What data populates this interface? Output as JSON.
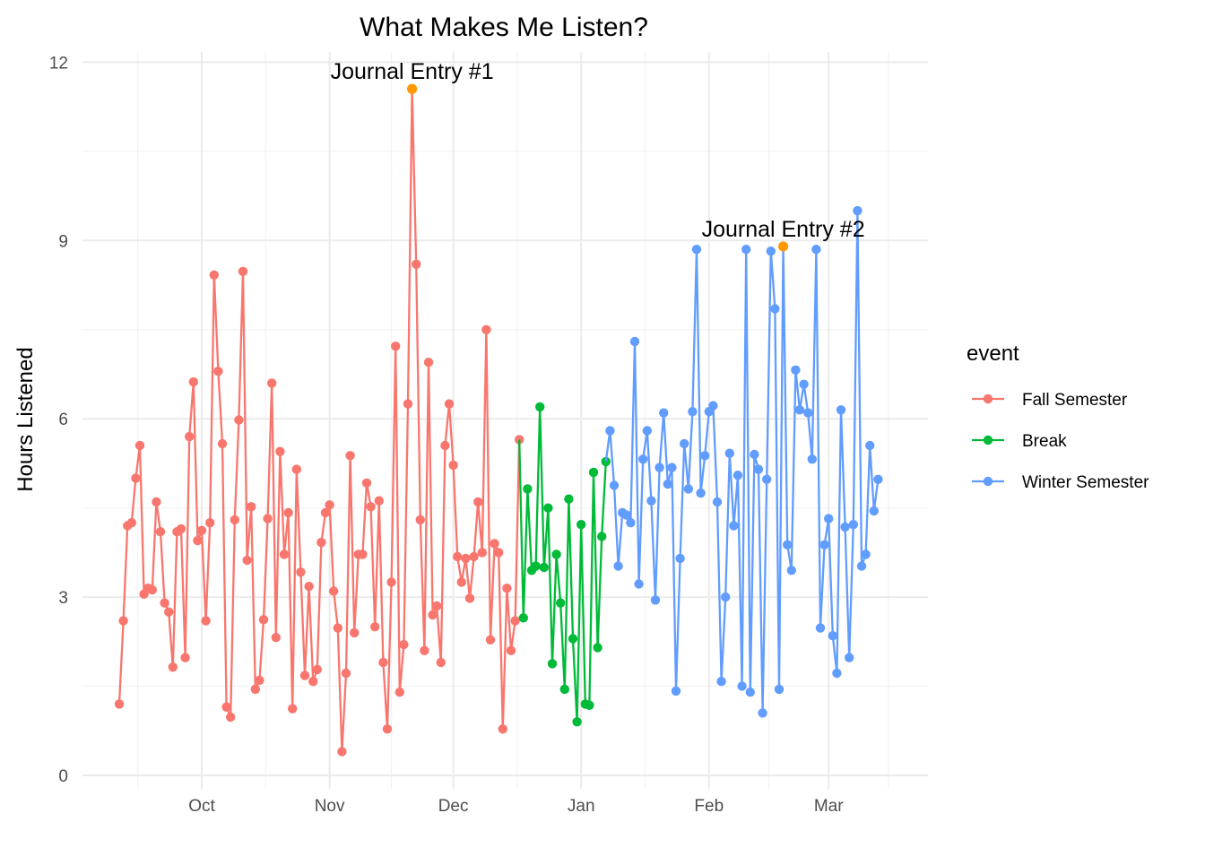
{
  "chart_data": {
    "type": "line",
    "title": "What Makes Me Listen?",
    "xlabel": "",
    "ylabel": "Hours Listened",
    "xlim": [
      "2023-09-05",
      "2024-03-17"
    ],
    "ylim": [
      0,
      12
    ],
    "y_ticks": [
      0,
      3,
      6,
      9,
      12
    ],
    "x_ticks": [
      {
        "date": "2023-10-01",
        "label": "Oct"
      },
      {
        "date": "2023-11-01",
        "label": "Nov"
      },
      {
        "date": "2023-12-01",
        "label": "Dec"
      },
      {
        "date": "2024-01-01",
        "label": "Jan"
      },
      {
        "date": "2024-02-01",
        "label": "Feb"
      },
      {
        "date": "2024-03-01",
        "label": "Mar"
      }
    ],
    "grid": true,
    "legend": {
      "title": "event",
      "position": "right"
    },
    "series": [
      {
        "name": "Fall Semester",
        "color": "#f8766d",
        "points": [
          [
            "2023-09-11",
            1.2
          ],
          [
            "2023-09-12",
            2.6
          ],
          [
            "2023-09-13",
            4.2
          ],
          [
            "2023-09-14",
            4.25
          ],
          [
            "2023-09-15",
            5.0
          ],
          [
            "2023-09-16",
            5.55
          ],
          [
            "2023-09-17",
            3.05
          ],
          [
            "2023-09-18",
            3.15
          ],
          [
            "2023-09-19",
            3.12
          ],
          [
            "2023-09-20",
            4.6
          ],
          [
            "2023-09-21",
            4.1
          ],
          [
            "2023-09-22",
            2.9
          ],
          [
            "2023-09-23",
            2.75
          ],
          [
            "2023-09-24",
            1.82
          ],
          [
            "2023-09-25",
            4.1
          ],
          [
            "2023-09-26",
            4.15
          ],
          [
            "2023-09-27",
            1.98
          ],
          [
            "2023-09-28",
            5.7
          ],
          [
            "2023-09-29",
            6.62
          ],
          [
            "2023-09-30",
            3.95
          ],
          [
            "2023-10-01",
            4.12
          ],
          [
            "2023-10-02",
            2.6
          ],
          [
            "2023-10-03",
            4.25
          ],
          [
            "2023-10-04",
            8.42
          ],
          [
            "2023-10-05",
            6.8
          ],
          [
            "2023-10-06",
            5.58
          ],
          [
            "2023-10-07",
            1.15
          ],
          [
            "2023-10-08",
            0.98
          ],
          [
            "2023-10-09",
            4.3
          ],
          [
            "2023-10-10",
            5.98
          ],
          [
            "2023-10-11",
            8.48
          ],
          [
            "2023-10-12",
            3.62
          ],
          [
            "2023-10-13",
            4.52
          ],
          [
            "2023-10-14",
            1.45
          ],
          [
            "2023-10-15",
            1.6
          ],
          [
            "2023-10-16",
            2.62
          ],
          [
            "2023-10-17",
            4.32
          ],
          [
            "2023-10-18",
            6.6
          ],
          [
            "2023-10-19",
            2.32
          ],
          [
            "2023-10-20",
            5.45
          ],
          [
            "2023-10-21",
            3.72
          ],
          [
            "2023-10-22",
            4.42
          ],
          [
            "2023-10-23",
            1.12
          ],
          [
            "2023-10-24",
            5.15
          ],
          [
            "2023-10-25",
            3.42
          ],
          [
            "2023-10-26",
            1.68
          ],
          [
            "2023-10-27",
            3.18
          ],
          [
            "2023-10-28",
            1.58
          ],
          [
            "2023-10-29",
            1.78
          ],
          [
            "2023-10-30",
            3.92
          ],
          [
            "2023-10-31",
            4.42
          ],
          [
            "2023-11-01",
            4.55
          ],
          [
            "2023-11-02",
            3.1
          ],
          [
            "2023-11-03",
            2.48
          ],
          [
            "2023-11-04",
            0.4
          ],
          [
            "2023-11-05",
            1.72
          ],
          [
            "2023-11-06",
            5.38
          ],
          [
            "2023-11-07",
            2.4
          ],
          [
            "2023-11-08",
            3.72
          ],
          [
            "2023-11-09",
            3.72
          ],
          [
            "2023-11-10",
            4.92
          ],
          [
            "2023-11-11",
            4.52
          ],
          [
            "2023-11-12",
            2.5
          ],
          [
            "2023-11-13",
            4.62
          ],
          [
            "2023-11-14",
            1.9
          ],
          [
            "2023-11-15",
            0.78
          ],
          [
            "2023-11-16",
            3.25
          ],
          [
            "2023-11-17",
            7.22
          ],
          [
            "2023-11-18",
            1.4
          ],
          [
            "2023-11-19",
            2.2
          ],
          [
            "2023-11-20",
            6.25
          ],
          [
            "2023-11-21",
            11.55
          ],
          [
            "2023-11-22",
            8.6
          ],
          [
            "2023-11-23",
            4.3
          ],
          [
            "2023-11-24",
            2.1
          ],
          [
            "2023-11-25",
            6.95
          ],
          [
            "2023-11-26",
            2.7
          ],
          [
            "2023-11-27",
            2.85
          ],
          [
            "2023-11-28",
            1.9
          ],
          [
            "2023-11-29",
            5.55
          ],
          [
            "2023-11-30",
            6.25
          ],
          [
            "2023-12-01",
            5.22
          ],
          [
            "2023-12-02",
            3.68
          ],
          [
            "2023-12-03",
            3.25
          ],
          [
            "2023-12-04",
            3.65
          ],
          [
            "2023-12-05",
            2.98
          ],
          [
            "2023-12-06",
            3.68
          ],
          [
            "2023-12-07",
            4.6
          ],
          [
            "2023-12-08",
            3.75
          ],
          [
            "2023-12-09",
            7.5
          ],
          [
            "2023-12-10",
            2.28
          ],
          [
            "2023-12-11",
            3.9
          ],
          [
            "2023-12-12",
            3.75
          ],
          [
            "2023-12-13",
            0.78
          ],
          [
            "2023-12-14",
            3.15
          ],
          [
            "2023-12-15",
            2.1
          ],
          [
            "2023-12-16",
            2.6
          ],
          [
            "2023-12-17",
            5.65
          ]
        ]
      },
      {
        "name": "Break",
        "color": "#00ba38",
        "points": [
          [
            "2023-12-18",
            2.65
          ],
          [
            "2023-12-19",
            4.82
          ],
          [
            "2023-12-20",
            3.45
          ],
          [
            "2023-12-21",
            3.52
          ],
          [
            "2023-12-22",
            6.2
          ],
          [
            "2023-12-23",
            3.5
          ],
          [
            "2023-12-24",
            4.5
          ],
          [
            "2023-12-25",
            1.88
          ],
          [
            "2023-12-26",
            3.72
          ],
          [
            "2023-12-27",
            2.9
          ],
          [
            "2023-12-28",
            1.45
          ],
          [
            "2023-12-29",
            4.65
          ],
          [
            "2023-12-30",
            2.3
          ],
          [
            "2023-12-31",
            0.9
          ],
          [
            "2024-01-01",
            4.22
          ],
          [
            "2024-01-02",
            1.2
          ],
          [
            "2024-01-03",
            1.18
          ],
          [
            "2024-01-04",
            5.1
          ],
          [
            "2024-01-05",
            2.15
          ],
          [
            "2024-01-06",
            4.02
          ],
          [
            "2024-01-07",
            5.28
          ]
        ]
      },
      {
        "name": "Winter Semester",
        "color": "#619cff",
        "points": [
          [
            "2024-01-08",
            5.8
          ],
          [
            "2024-01-09",
            4.88
          ],
          [
            "2024-01-10",
            3.52
          ],
          [
            "2024-01-11",
            4.42
          ],
          [
            "2024-01-12",
            4.38
          ],
          [
            "2024-01-13",
            4.25
          ],
          [
            "2024-01-14",
            7.3
          ],
          [
            "2024-01-15",
            3.22
          ],
          [
            "2024-01-16",
            5.32
          ],
          [
            "2024-01-17",
            5.8
          ],
          [
            "2024-01-18",
            4.62
          ],
          [
            "2024-01-19",
            2.95
          ],
          [
            "2024-01-20",
            5.18
          ],
          [
            "2024-01-21",
            6.1
          ],
          [
            "2024-01-22",
            4.9
          ],
          [
            "2024-01-23",
            5.18
          ],
          [
            "2024-01-24",
            1.42
          ],
          [
            "2024-01-25",
            3.65
          ],
          [
            "2024-01-26",
            5.58
          ],
          [
            "2024-01-27",
            4.82
          ],
          [
            "2024-01-28",
            6.12
          ],
          [
            "2024-01-29",
            8.85
          ],
          [
            "2024-01-30",
            4.75
          ],
          [
            "2024-01-31",
            5.38
          ],
          [
            "2024-02-01",
            6.12
          ],
          [
            "2024-02-02",
            6.22
          ],
          [
            "2024-02-03",
            4.6
          ],
          [
            "2024-02-04",
            1.58
          ],
          [
            "2024-02-05",
            3.0
          ],
          [
            "2024-02-06",
            5.42
          ],
          [
            "2024-02-07",
            4.2
          ],
          [
            "2024-02-08",
            5.05
          ],
          [
            "2024-02-09",
            1.5
          ],
          [
            "2024-02-10",
            8.85
          ],
          [
            "2024-02-11",
            1.4
          ],
          [
            "2024-02-12",
            5.4
          ],
          [
            "2024-02-13",
            5.15
          ],
          [
            "2024-02-14",
            1.05
          ],
          [
            "2024-02-15",
            4.98
          ],
          [
            "2024-02-16",
            8.82
          ],
          [
            "2024-02-17",
            7.85
          ],
          [
            "2024-02-18",
            1.45
          ],
          [
            "2024-02-19",
            8.9
          ],
          [
            "2024-02-20",
            3.88
          ],
          [
            "2024-02-21",
            3.45
          ],
          [
            "2024-02-22",
            6.82
          ],
          [
            "2024-02-23",
            6.15
          ],
          [
            "2024-02-24",
            6.58
          ],
          [
            "2024-02-25",
            6.1
          ],
          [
            "2024-02-26",
            5.32
          ],
          [
            "2024-02-27",
            8.85
          ],
          [
            "2024-02-28",
            2.48
          ],
          [
            "2024-02-29",
            3.88
          ],
          [
            "2024-03-01",
            4.32
          ],
          [
            "2024-03-02",
            2.35
          ],
          [
            "2024-03-03",
            1.72
          ],
          [
            "2024-03-04",
            6.15
          ],
          [
            "2024-03-05",
            4.18
          ],
          [
            "2024-03-06",
            1.98
          ],
          [
            "2024-03-07",
            4.22
          ],
          [
            "2024-03-08",
            9.5
          ],
          [
            "2024-03-09",
            3.52
          ],
          [
            "2024-03-10",
            3.72
          ],
          [
            "2024-03-11",
            5.55
          ],
          [
            "2024-03-12",
            4.45
          ],
          [
            "2024-03-13",
            4.98
          ]
        ]
      }
    ],
    "annotations": [
      {
        "label": "Journal Entry #1",
        "date": "2023-11-21",
        "value": 11.55,
        "color": "#ff9900"
      },
      {
        "label": "Journal Entry #2",
        "date": "2024-02-19",
        "value": 8.9,
        "color": "#ff9900"
      }
    ]
  }
}
